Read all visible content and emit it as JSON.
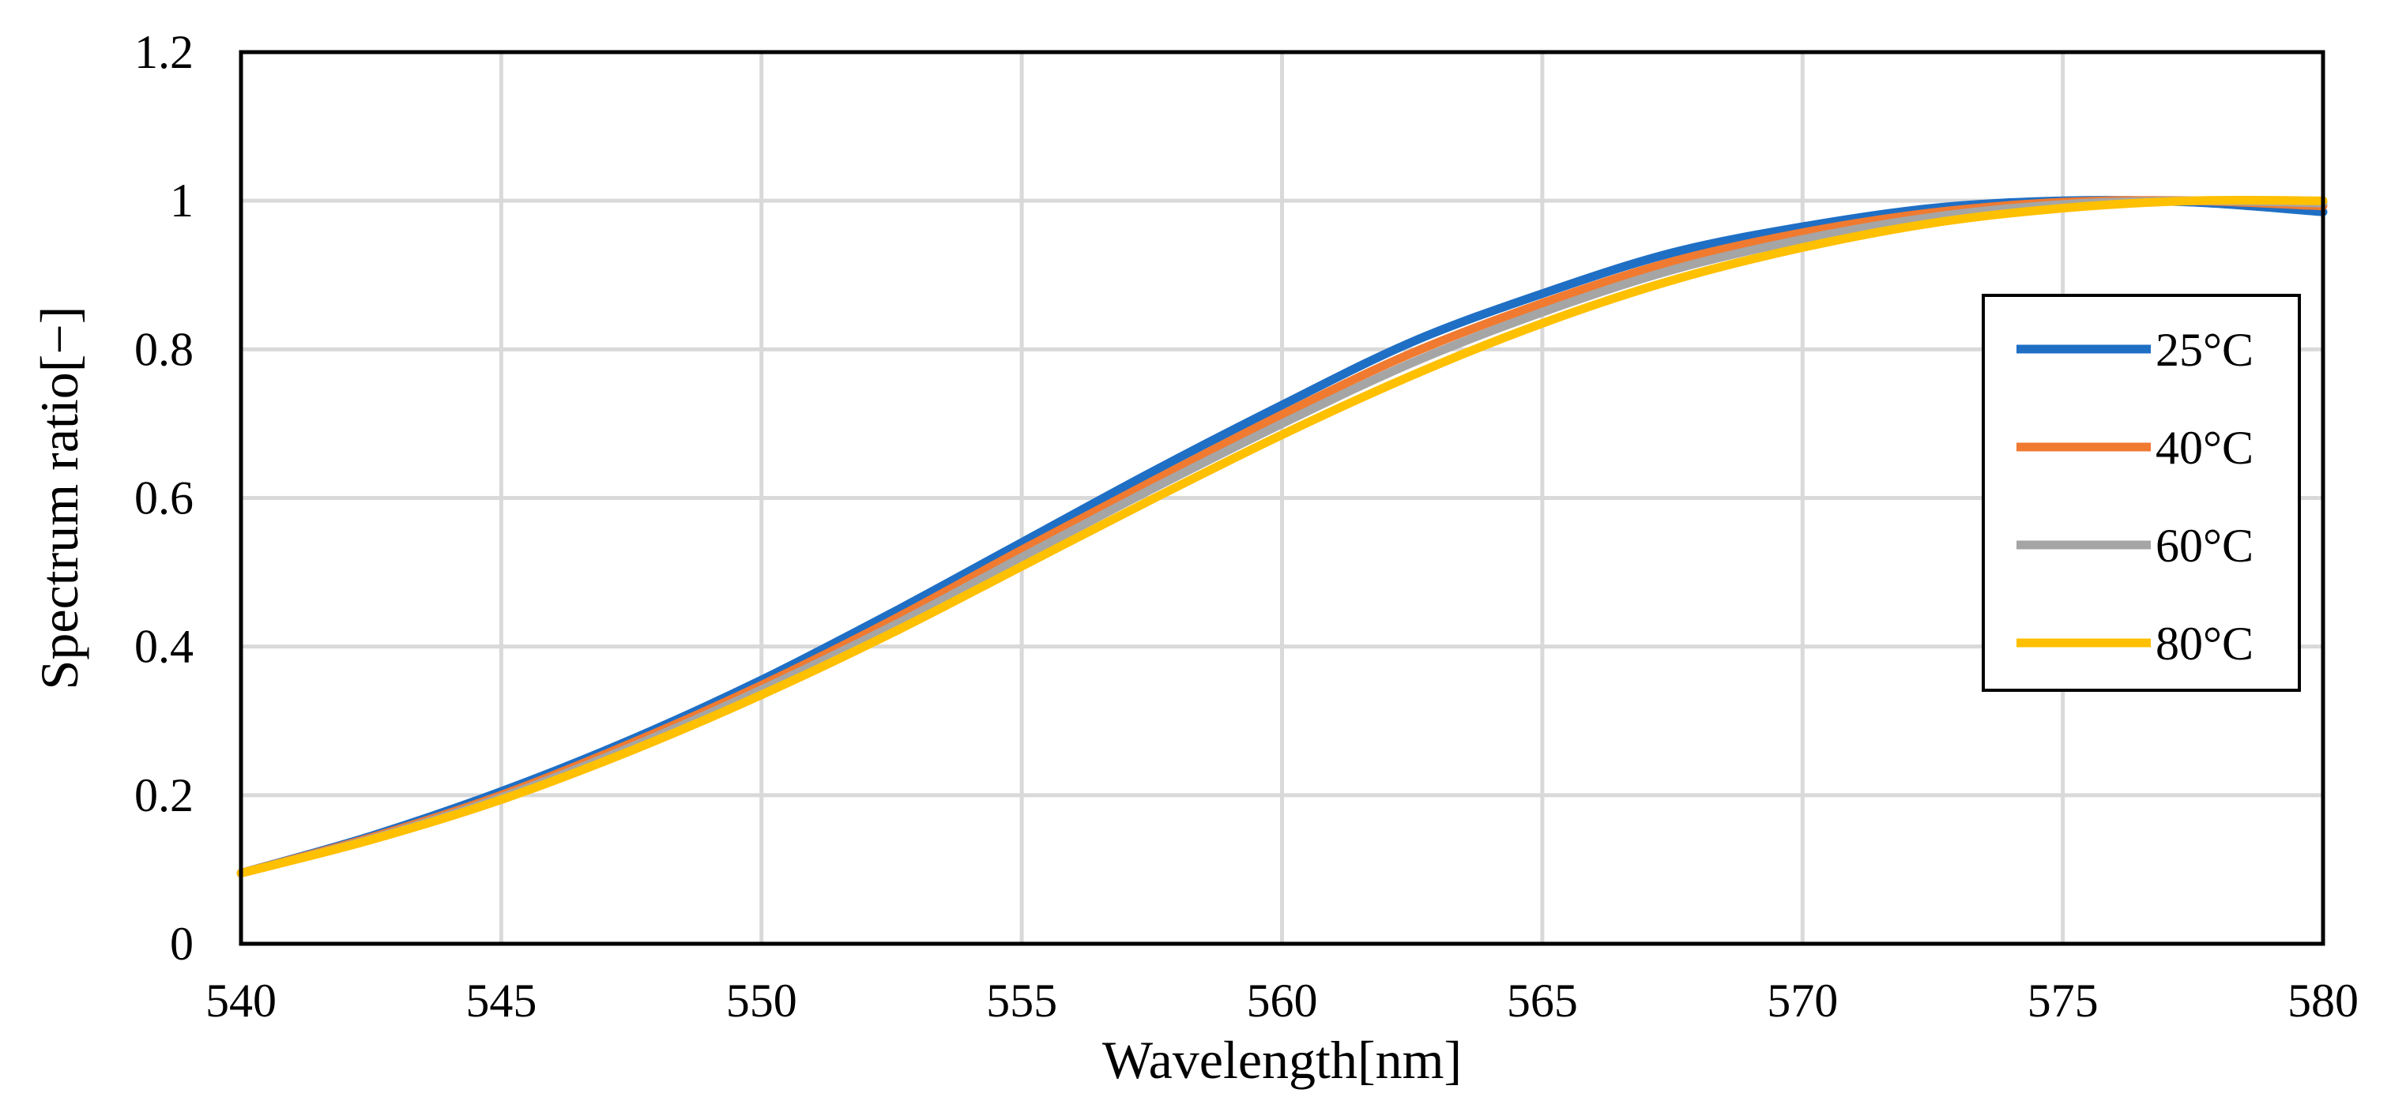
{
  "chart_data": {
    "type": "line",
    "title": "",
    "xlabel": "Wavelength[nm]",
    "ylabel": "Spectrum ratio[−]",
    "xlim": [
      540,
      580
    ],
    "ylim": [
      0,
      1.2
    ],
    "x_ticks": [
      540,
      545,
      550,
      555,
      560,
      565,
      570,
      575,
      580
    ],
    "y_ticks": [
      0,
      0.2,
      0.4,
      0.6,
      0.8,
      1,
      1.2
    ],
    "x_tick_labels": [
      "540",
      "545",
      "550",
      "555",
      "560",
      "565",
      "570",
      "575",
      "580"
    ],
    "y_tick_labels": [
      "0",
      "0.2",
      "0.4",
      "0.6",
      "0.8",
      "1",
      "1.2"
    ],
    "grid": true,
    "legend_position": "right",
    "x": [
      540,
      542.5,
      545,
      547.5,
      550,
      552.5,
      555,
      557.5,
      560,
      562.5,
      565,
      567.5,
      570,
      572.5,
      575,
      577.5,
      580
    ],
    "series": [
      {
        "name": "25°C",
        "color": "#1F6FC5",
        "values": [
          0.095,
          0.145,
          0.205,
          0.275,
          0.355,
          0.445,
          0.54,
          0.635,
          0.725,
          0.81,
          0.875,
          0.93,
          0.965,
          0.99,
          1.0,
          0.998,
          0.985
        ]
      },
      {
        "name": "40°C",
        "color": "#F07A30",
        "values": [
          0.095,
          0.143,
          0.2,
          0.27,
          0.348,
          0.435,
          0.53,
          0.622,
          0.712,
          0.795,
          0.862,
          0.918,
          0.957,
          0.984,
          0.998,
          1.0,
          0.993
        ]
      },
      {
        "name": "60°C",
        "color": "#A5A5A5",
        "values": [
          0.095,
          0.141,
          0.197,
          0.265,
          0.342,
          0.427,
          0.52,
          0.612,
          0.7,
          0.782,
          0.85,
          0.907,
          0.948,
          0.978,
          0.995,
          1.0,
          0.997
        ]
      },
      {
        "name": "80°C",
        "color": "#FFC000",
        "values": [
          0.095,
          0.14,
          0.194,
          0.26,
          0.335,
          0.418,
          0.508,
          0.598,
          0.685,
          0.765,
          0.835,
          0.893,
          0.937,
          0.97,
          0.99,
          1.0,
          1.0
        ]
      }
    ]
  }
}
